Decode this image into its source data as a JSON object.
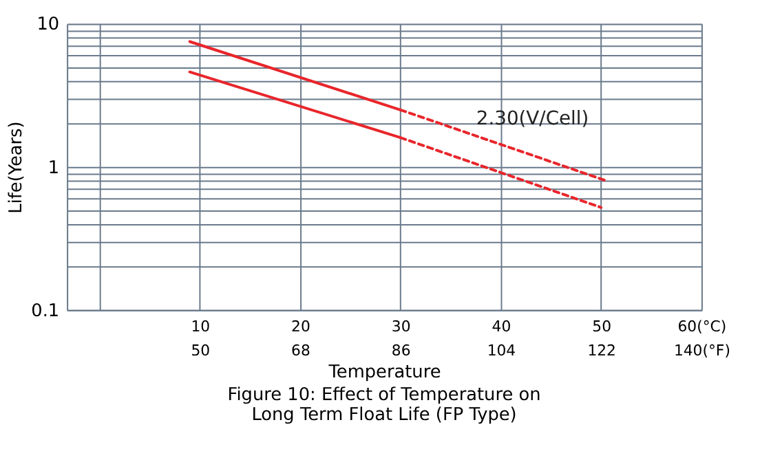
{
  "chart_data": {
    "type": "line",
    "title": "Figure 10: Effect of Temperature on\nLong Term Float Life (FP Type)",
    "xlabel": "Temperature",
    "ylabel": "Life(Years)",
    "series": [
      {
        "color": "#e8262b",
        "line_style": "solid",
        "x": [
          9,
          30
        ],
        "values": [
          7.5,
          2.5
        ]
      },
      {
        "color": "#e8262b",
        "line_style": "solid",
        "x": [
          9,
          30
        ],
        "values": [
          4.6,
          1.6
        ]
      },
      {
        "color": "#e8262b",
        "line_style": "dashed",
        "x": [
          30,
          50.5
        ],
        "values": [
          2.5,
          0.8
        ]
      },
      {
        "color": "#e8262b",
        "line_style": "dashed",
        "x": [
          30,
          50
        ],
        "values": [
          1.6,
          0.52
        ]
      }
    ],
    "annotations": [
      "2.30(V/Cell)"
    ],
    "log": "y",
    "grid": true,
    "marker": "none",
    "xlim": [
      -3.25,
      60
    ],
    "ylim": [
      0.1,
      10
    ],
    "xticks": [
      {
        "value": 0,
        "label": null
      },
      10,
      20,
      30,
      40,
      50,
      {
        "value": 60,
        "label": "60(°C)"
      }
    ],
    "x2lim": [
      26.15,
      140
    ],
    "x2ticks": [
      50,
      68,
      86,
      104,
      122,
      {
        "value": 140,
        "label": "140(°F)"
      }
    ],
    "yticks": [
      0.1,
      {
        "value": 0.2,
        "label": null
      },
      {
        "value": 0.3,
        "label": null
      },
      {
        "value": 0.4,
        "label": null
      },
      {
        "value": 0.5,
        "label": null
      },
      {
        "value": 0.6,
        "label": null
      },
      {
        "value": 0.7,
        "label": null
      },
      {
        "value": 0.8,
        "label": null
      },
      {
        "value": 0.9,
        "label": null
      },
      1,
      {
        "value": 2,
        "label": null
      },
      {
        "value": 3,
        "label": null
      },
      {
        "value": 4,
        "label": null
      },
      {
        "value": 5,
        "label": null
      },
      {
        "value": 6,
        "label": null
      },
      {
        "value": 7,
        "label": null
      },
      {
        "value": 8,
        "label": null
      },
      {
        "value": 9,
        "label": null
      },
      10
    ]
  }
}
